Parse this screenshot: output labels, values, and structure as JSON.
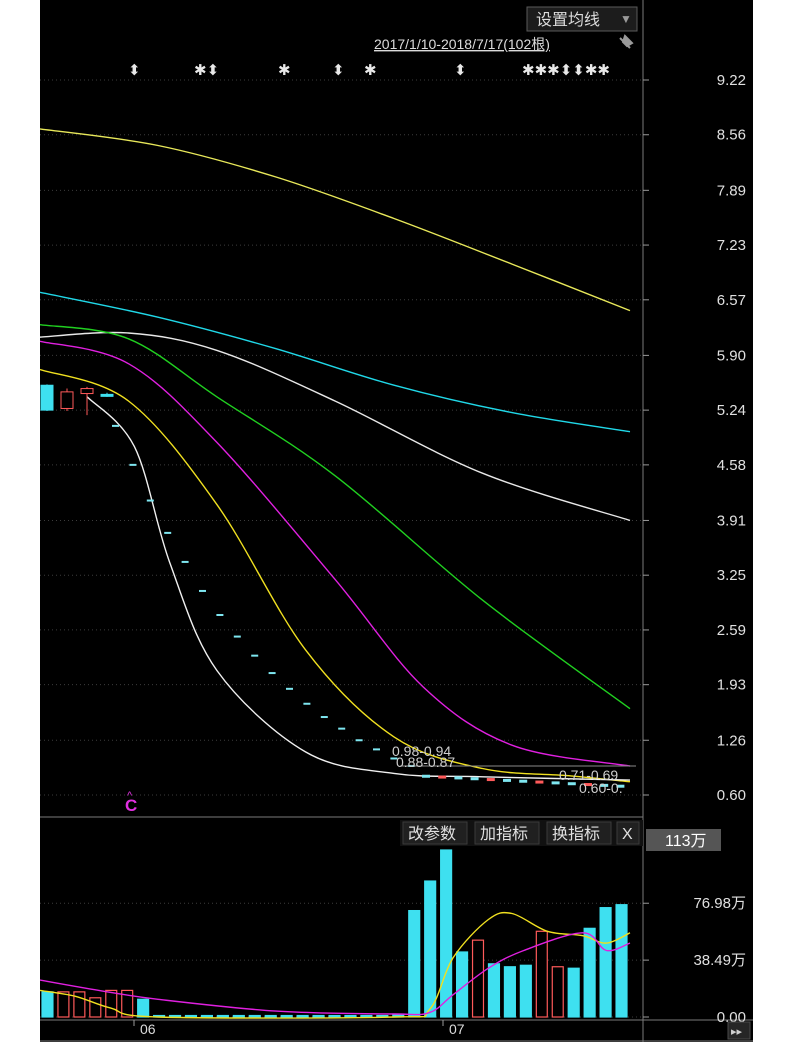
{
  "toolbar": {
    "ma_settings_label": "设置均线",
    "dropdown_icon": "chevron-down-icon",
    "range_label": "2017/1/10-2018/7/17(102根)",
    "pin_icon": "pin-icon"
  },
  "price_chart": {
    "y_ticks": [
      "9.22",
      "8.56",
      "7.89",
      "7.23",
      "6.57",
      "5.90",
      "5.24",
      "4.58",
      "3.91",
      "3.25",
      "2.59",
      "1.93",
      "1.26",
      "0.60"
    ],
    "ylim": [
      0.6,
      9.22
    ],
    "marker_row": [
      "⬍",
      "✱⬍",
      "✱",
      "⬍",
      "✱",
      "⬍",
      "✱✱✱⬍⬍✱✱"
    ],
    "annotations": {
      "label_1": "0.98-0.94",
      "label_2": "0.88-0.87",
      "label_3": "0.71-0.69",
      "label_4": "0.60-0."
    },
    "event_marker": "C"
  },
  "chart_data": [
    {
      "type": "line",
      "title": "",
      "ylim": [
        0.6,
        9.22
      ],
      "x_range": [
        0,
        100
      ],
      "series": [
        {
          "color": "#e8e85a",
          "points": [
            [
              0,
              8.63
            ],
            [
              20,
              8.43
            ],
            [
              40,
              8.05
            ],
            [
              60,
              7.55
            ],
            [
              80,
              7.0
            ],
            [
              100,
              6.44
            ]
          ]
        },
        {
          "color": "#20d8e8",
          "points": [
            [
              0,
              6.66
            ],
            [
              20,
              6.36
            ],
            [
              40,
              5.98
            ],
            [
              60,
              5.54
            ],
            [
              80,
              5.21
            ],
            [
              100,
              4.98
            ]
          ]
        },
        {
          "color": "#e8e8e8",
          "points": [
            [
              0,
              6.12
            ],
            [
              15,
              6.17
            ],
            [
              30,
              5.96
            ],
            [
              50,
              5.35
            ],
            [
              75,
              4.48
            ],
            [
              100,
              3.91
            ]
          ]
        },
        {
          "color": "#20d020",
          "points": [
            [
              0,
              6.27
            ],
            [
              15,
              6.1
            ],
            [
              30,
              5.4
            ],
            [
              50,
              4.45
            ],
            [
              75,
              2.95
            ],
            [
              100,
              1.64
            ]
          ]
        },
        {
          "color": "#e020e0",
          "points": [
            [
              0,
              6.07
            ],
            [
              15,
              5.8
            ],
            [
              30,
              4.85
            ],
            [
              50,
              3.2
            ],
            [
              65,
              1.9
            ],
            [
              80,
              1.2
            ],
            [
              100,
              0.95
            ]
          ]
        },
        {
          "color": "#f0e020",
          "points": [
            [
              0,
              5.73
            ],
            [
              15,
              5.35
            ],
            [
              30,
              4.1
            ],
            [
              45,
              2.35
            ],
            [
              60,
              1.3
            ],
            [
              75,
              0.92
            ],
            [
              90,
              0.83
            ],
            [
              100,
              0.76
            ]
          ]
        },
        {
          "color": "#f0f0f0",
          "points": [
            [
              8,
              5.4
            ],
            [
              16,
              4.8
            ],
            [
              22,
              3.4
            ],
            [
              30,
              2.1
            ],
            [
              45,
              1.12
            ],
            [
              60,
              0.86
            ],
            [
              75,
              0.82
            ],
            [
              100,
              0.78
            ]
          ]
        }
      ],
      "candles": [
        {
          "o": 5.54,
          "c": 5.24,
          "h": 5.55,
          "l": 5.23,
          "color": "#3ee0f0"
        },
        {
          "o": 5.26,
          "c": 5.46,
          "h": 5.5,
          "l": 5.23,
          "color": "#ff5a5a"
        },
        {
          "o": 5.44,
          "c": 5.5,
          "h": 5.52,
          "l": 5.18,
          "color": "#ff5a5a"
        },
        {
          "o": 5.43,
          "c": 5.43,
          "h": 5.45,
          "l": 5.4,
          "color": "#3ee0f0"
        }
      ],
      "limit_down_dashes": [
        5.05,
        4.58,
        4.15,
        3.76,
        3.41,
        3.06,
        2.77,
        2.51,
        2.28,
        2.07,
        1.88,
        1.7,
        1.54,
        1.4,
        1.26,
        1.15,
        1.04,
        0.95
      ]
    },
    {
      "type": "bar",
      "title": "",
      "ylim": [
        0,
        113
      ],
      "y_ticks": [
        "76.98万",
        "38.49万",
        "0.00"
      ],
      "current_value": "113万",
      "x_ticks": [
        "06",
        "07"
      ],
      "values": [
        17,
        17,
        17,
        13,
        18,
        18,
        12,
        1,
        1,
        1,
        1,
        1,
        1,
        1,
        1,
        1,
        1,
        1,
        1,
        1,
        1,
        1,
        2,
        72,
        92,
        113,
        44,
        52,
        36,
        34,
        35,
        58,
        34,
        33,
        60,
        74,
        76
      ],
      "colors": [
        "#3ee0f0",
        "#ff5a5a",
        "#ff5a5a",
        "#ff5a5a",
        "#ff5a5a",
        "#ff5a5a",
        "#3ee0f0",
        "#3ee0f0",
        "#3ee0f0",
        "#3ee0f0",
        "#3ee0f0",
        "#3ee0f0",
        "#3ee0f0",
        "#3ee0f0",
        "#3ee0f0",
        "#3ee0f0",
        "#3ee0f0",
        "#3ee0f0",
        "#3ee0f0",
        "#3ee0f0",
        "#3ee0f0",
        "#3ee0f0",
        "#3ee0f0",
        "#3ee0f0",
        "#3ee0f0",
        "#3ee0f0",
        "#3ee0f0",
        "#ff5a5a",
        "#3ee0f0",
        "#3ee0f0",
        "#3ee0f0",
        "#ff5a5a",
        "#ff5a5a",
        "#3ee0f0",
        "#3ee0f0",
        "#3ee0f0",
        "#3ee0f0"
      ],
      "series": [
        {
          "color": "#f0e020",
          "points": [
            [
              0,
              18
            ],
            [
              6,
              14
            ],
            [
              12,
              6
            ],
            [
              20,
              0
            ],
            [
              60,
              0
            ],
            [
              66,
              5
            ],
            [
              70,
              40
            ],
            [
              76,
              66
            ],
            [
              80,
              70
            ],
            [
              86,
              58
            ],
            [
              92,
              55
            ],
            [
              96,
              50
            ],
            [
              100,
              57
            ]
          ]
        },
        {
          "color": "#e020e0",
          "points": [
            [
              0,
              25
            ],
            [
              10,
              18
            ],
            [
              20,
              12
            ],
            [
              40,
              4
            ],
            [
              60,
              2
            ],
            [
              66,
              3
            ],
            [
              70,
              15
            ],
            [
              76,
              33
            ],
            [
              82,
              45
            ],
            [
              92,
              57
            ],
            [
              96,
              45
            ],
            [
              100,
              50
            ]
          ]
        }
      ]
    }
  ],
  "volume_toolbar": {
    "modify_params_label": "改参数",
    "add_indicator_label": "加指标",
    "switch_indicator_label": "换指标",
    "close_label": "X"
  },
  "footer": {
    "scroll_icon": "double-chevron-right-icon",
    "scroll_glyph": "▸▸"
  }
}
